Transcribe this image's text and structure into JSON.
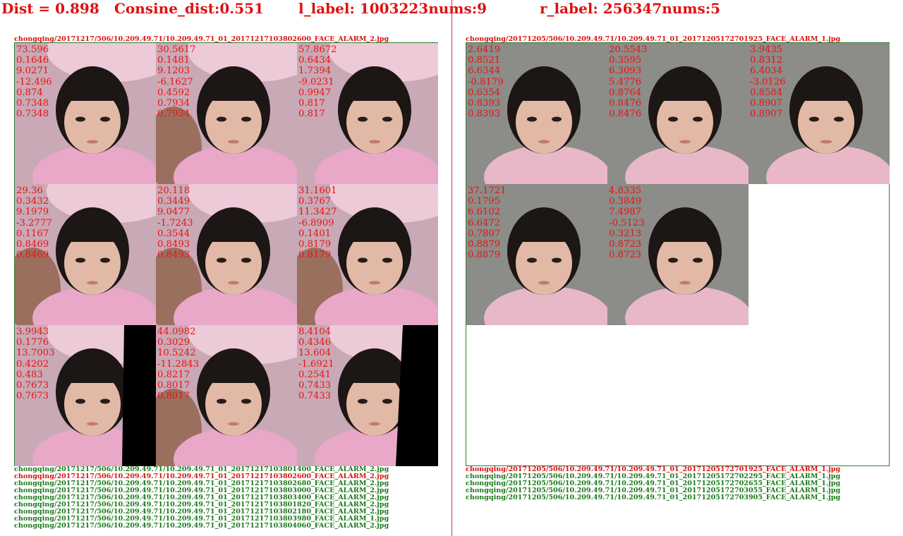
{
  "header": {
    "dist": "Dist = 0.898",
    "cosine": "Consine_dist:0.551",
    "l_label": "l_label: 1003223nums:9",
    "r_label": "r_label: 256347nums:5"
  },
  "left": {
    "query_file": "chongqing/20171217/506/10.209.49.71/10.209.49.71_01_20171217103802600_FACE_ALARM_2.jpg",
    "cells": [
      {
        "vals": [
          "73.596",
          "0.1646",
          "9.0271",
          "-12.496",
          "0.874",
          "0.7348",
          "0.7348"
        ],
        "face": "girl"
      },
      {
        "vals": [
          "30.5617",
          "0.1481",
          "9.1203",
          "-6.1627",
          "0.4592",
          "0.7934",
          "0.7934"
        ],
        "face": "girl-adult"
      },
      {
        "vals": [
          "57.8672",
          "0.6434",
          "1.7394",
          "-9.0231",
          "0.9947",
          "0.817",
          "0.817"
        ],
        "face": "girl"
      },
      {
        "vals": [
          "29.36",
          "0.3432",
          "9.1979",
          "-3.2777",
          "0.1167",
          "0.8469",
          "0.8469"
        ],
        "face": "girl-adult"
      },
      {
        "vals": [
          "20.118",
          "0.3449",
          "9.0477",
          "-1.7243",
          "0.3544",
          "0.8493",
          "0.8493"
        ],
        "face": "girl-adult"
      },
      {
        "vals": [
          "31.1601",
          "0.3767",
          "11.3427",
          "-6.8909",
          "0.1401",
          "0.8179",
          "0.8179"
        ],
        "face": "girl-adult"
      },
      {
        "vals": [
          "3.9943",
          "0.1776",
          "13.7003",
          "0.4202",
          "0.483",
          "0.7673",
          "0.7673"
        ],
        "face": "girl-black-right"
      },
      {
        "vals": [
          "44.0982",
          "0.3029",
          "10.5242",
          "-11.2843",
          "0.8217",
          "0.8017",
          "0.8017"
        ],
        "face": "girl-adult"
      },
      {
        "vals": [
          "8.4104",
          "0.4346",
          "13.604",
          "-1.6921",
          "0.2541",
          "0.7433",
          "0.7433"
        ],
        "face": "girl-black-right2"
      }
    ],
    "files": [
      {
        "text": "chongqing/20171217/506/10.209.49.71/10.209.49.71_01_20171217103801400_FACE_ALARM_2.jpg",
        "color": "#1a7a1a"
      },
      {
        "text": "chongqing/20171217/506/10.209.49.71/10.209.49.71_01_20171217103802600_FACE_ALARM_2.jpg",
        "color": "#dd1111"
      },
      {
        "text": "chongqing/20171217/506/10.209.49.71/10.209.49.71_01_20171217103802680_FACE_ALARM_2.jpg",
        "color": "#1a7a1a"
      },
      {
        "text": "chongqing/20171217/506/10.209.49.71/10.209.49.71_01_20171217103803000_FACE_ALARM_2.jpg",
        "color": "#1a7a1a"
      },
      {
        "text": "chongqing/20171217/506/10.209.49.71/10.209.49.71_01_20171217103803400_FACE_ALARM_2.jpg",
        "color": "#1a7a1a"
      },
      {
        "text": "chongqing/20171217/506/10.209.49.71/10.209.49.71_01_20171217103801820_FACE_ALARM_2.jpg",
        "color": "#1a7a1a"
      },
      {
        "text": "chongqing/20171217/506/10.209.49.71/10.209.49.71_01_20171217103802180_FACE_ALARM_2.jpg",
        "color": "#1a7a1a"
      },
      {
        "text": "chongqing/20171217/506/10.209.49.71/10.209.49.71_01_20171217103803980_FACE_ALARM_1.jpg",
        "color": "#1a7a1a"
      },
      {
        "text": "chongqing/20171217/506/10.209.49.71/10.209.49.71_01_20171217103804060_FACE_ALARM_2.jpg",
        "color": "#1a7a1a"
      }
    ]
  },
  "right": {
    "query_file": "chongqing/20171205/506/10.209.49.71/10.209.49.71_01_20171205172701925_FACE_ALARM_1.jpg",
    "cells": [
      {
        "vals": [
          "2.6419",
          "0.8521",
          "6.6344",
          "-0.8179",
          "0.6354",
          "0.8393",
          "0.8393"
        ],
        "face": "girl-gray"
      },
      {
        "vals": [
          "20.5543",
          "0.3595",
          "6.3093",
          "5.4776",
          "0.8764",
          "0.8476",
          "0.8476"
        ],
        "face": "girl-gray"
      },
      {
        "vals": [
          "3.9435",
          "0.8312",
          "6.4034",
          "-3.0126",
          "0.8584",
          "0.8907",
          "0.8907"
        ],
        "face": "girl-gray"
      },
      {
        "vals": [
          "37.1721",
          "0.1795",
          "6.6102",
          "6.6472",
          "0.7807",
          "0.8879",
          "0.8879"
        ],
        "face": "girl-gray"
      },
      {
        "vals": [
          "4.8335",
          "0.3849",
          "7.4987",
          "-0.5123",
          "0.3213",
          "0.8723",
          "0.8723"
        ],
        "face": "girl-gray"
      }
    ],
    "files": [
      {
        "text": "chongqing/20171205/506/10.209.49.71/10.209.49.71_01_20171205172701925_FACE_ALARM_1.jpg",
        "color": "#dd1111"
      },
      {
        "text": "chongqing/20171205/506/10.209.49.71/10.209.49.71_01_20171205172702295_FACE_ALARM_1.jpg",
        "color": "#1a7a1a"
      },
      {
        "text": "chongqing/20171205/506/10.209.49.71/10.209.49.71_01_20171205172702655_FACE_ALARM_1.jpg",
        "color": "#1a7a1a"
      },
      {
        "text": "chongqing/20171205/506/10.209.49.71/10.209.49.71_01_20171205172703055_FACE_ALARM_1.jpg",
        "color": "#1a7a1a"
      },
      {
        "text": "chongqing/20171205/506/10.209.49.71/10.209.49.71_01_20171205172703905_FACE_ALARM_1.jpg",
        "color": "#1a7a1a"
      }
    ]
  }
}
